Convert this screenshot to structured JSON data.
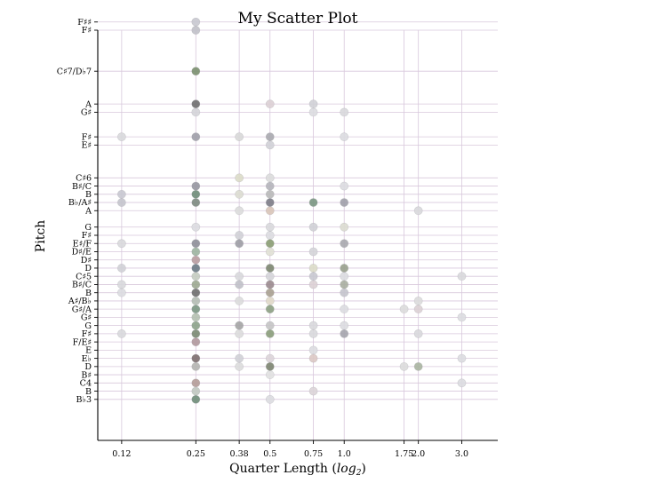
{
  "chart_data": {
    "type": "scatter",
    "title": "My Scatter Plot",
    "xlabel_main": "Quarter Length (",
    "xlabel_math": "log",
    "xlabel_sub": "2",
    "xlabel_close": ")",
    "ylabel": "Pitch",
    "x_scale": "log2",
    "xlim": [
      0.1,
      4.2
    ],
    "x_ticks": [
      {
        "value": 0.125,
        "label": "0.12"
      },
      {
        "value": 0.25,
        "label": "0.25"
      },
      {
        "value": 0.375,
        "label": "0.38"
      },
      {
        "value": 0.5,
        "label": "0.5"
      },
      {
        "value": 0.75,
        "label": "0.75"
      },
      {
        "value": 1.0,
        "label": "1.0"
      },
      {
        "value": 1.75,
        "label": "1.75"
      },
      {
        "value": 2.0,
        "label": "2.0"
      },
      {
        "value": 3.0,
        "label": "3.0"
      }
    ],
    "ylim": [
      44,
      94
    ],
    "y_ticks": [
      {
        "value": 49,
        "label": "B♭3"
      },
      {
        "value": 50,
        "label": "B"
      },
      {
        "value": 51,
        "label": "C4"
      },
      {
        "value": 52,
        "label": "B♯"
      },
      {
        "value": 53,
        "label": "D"
      },
      {
        "value": 54,
        "label": "E♭"
      },
      {
        "value": 55,
        "label": "E"
      },
      {
        "value": 56,
        "label": "F/E♯"
      },
      {
        "value": 57,
        "label": "F♯"
      },
      {
        "value": 58,
        "label": "G"
      },
      {
        "value": 59,
        "label": "G♯"
      },
      {
        "value": 60,
        "label": "G♯/A"
      },
      {
        "value": 61,
        "label": "A♯/B♭"
      },
      {
        "value": 62,
        "label": "B"
      },
      {
        "value": 63,
        "label": "B♯/C"
      },
      {
        "value": 64,
        "label": "C♯5"
      },
      {
        "value": 65,
        "label": "D"
      },
      {
        "value": 66,
        "label": "D♯"
      },
      {
        "value": 67,
        "label": "D♯/E"
      },
      {
        "value": 68,
        "label": "E♯/F"
      },
      {
        "value": 69,
        "label": "F♯"
      },
      {
        "value": 70,
        "label": "G"
      },
      {
        "value": 72,
        "label": "A"
      },
      {
        "value": 73,
        "label": "B♭/A♯"
      },
      {
        "value": 74,
        "label": "B"
      },
      {
        "value": 75,
        "label": "B♯/C"
      },
      {
        "value": 76,
        "label": "C♯6"
      },
      {
        "value": 80,
        "label": "E♯"
      },
      {
        "value": 81,
        "label": "F♯"
      },
      {
        "value": 84,
        "label": "G♯"
      },
      {
        "value": 85,
        "label": "A"
      },
      {
        "value": 89,
        "label": "C♯7/D♭7"
      },
      {
        "value": 94,
        "label": "F♯"
      },
      {
        "value": 95,
        "label": "F♯♯"
      }
    ],
    "grid": true,
    "points": [
      {
        "x": 0.25,
        "y": 95,
        "color": "#c8c8cf"
      },
      {
        "x": 0.25,
        "y": 94,
        "color": "#c0c0c8"
      },
      {
        "x": 0.25,
        "y": 89,
        "color": "#7a8f6e"
      },
      {
        "x": 0.25,
        "y": 85,
        "color": "#6e6e6e"
      },
      {
        "x": 0.25,
        "y": 84,
        "color": "#d4d4d8"
      },
      {
        "x": 0.5,
        "y": 85,
        "color": "#dccfd4"
      },
      {
        "x": 0.75,
        "y": 85,
        "color": "#d0d0d6"
      },
      {
        "x": 0.75,
        "y": 84,
        "color": "#dcdce0"
      },
      {
        "x": 1.0,
        "y": 84,
        "color": "#d8d8dc"
      },
      {
        "x": 0.125,
        "y": 81,
        "color": "#d8d8dc"
      },
      {
        "x": 0.25,
        "y": 81,
        "color": "#9e9ea8"
      },
      {
        "x": 0.375,
        "y": 81,
        "color": "#d8d8d8"
      },
      {
        "x": 0.5,
        "y": 81,
        "color": "#a8a8ae"
      },
      {
        "x": 0.5,
        "y": 80,
        "color": "#d0d0d6"
      },
      {
        "x": 1.0,
        "y": 81,
        "color": "#dcdce0"
      },
      {
        "x": 0.375,
        "y": 76,
        "color": "#dcdcc8"
      },
      {
        "x": 0.5,
        "y": 76,
        "color": "#dcdcdc"
      },
      {
        "x": 0.25,
        "y": 75,
        "color": "#9696a0"
      },
      {
        "x": 0.5,
        "y": 75,
        "color": "#b4b4ba"
      },
      {
        "x": 1.0,
        "y": 75,
        "color": "#dcdce0"
      },
      {
        "x": 0.125,
        "y": 74,
        "color": "#c8c8d0"
      },
      {
        "x": 0.25,
        "y": 74,
        "color": "#6e8c78"
      },
      {
        "x": 0.375,
        "y": 74,
        "color": "#dcdcd0"
      },
      {
        "x": 0.5,
        "y": 74,
        "color": "#b8b8b8"
      },
      {
        "x": 0.125,
        "y": 73,
        "color": "#c4c4cc"
      },
      {
        "x": 0.25,
        "y": 73,
        "color": "#7c8a80"
      },
      {
        "x": 0.5,
        "y": 73,
        "color": "#7c7c86"
      },
      {
        "x": 0.75,
        "y": 73,
        "color": "#7a9682"
      },
      {
        "x": 1.0,
        "y": 73,
        "color": "#a0a0a8"
      },
      {
        "x": 0.375,
        "y": 72,
        "color": "#dcdcdc"
      },
      {
        "x": 0.5,
        "y": 72,
        "color": "#d8c4b8"
      },
      {
        "x": 2.0,
        "y": 72,
        "color": "#d8d8dc"
      },
      {
        "x": 0.25,
        "y": 70,
        "color": "#dcdce0"
      },
      {
        "x": 0.5,
        "y": 70,
        "color": "#d8d8dc"
      },
      {
        "x": 0.75,
        "y": 70,
        "color": "#d0d0d6"
      },
      {
        "x": 1.0,
        "y": 70,
        "color": "#dcdcd0"
      },
      {
        "x": 0.375,
        "y": 69,
        "color": "#d0d0d6"
      },
      {
        "x": 0.5,
        "y": 69,
        "color": "#dcdce0"
      },
      {
        "x": 0.125,
        "y": 68,
        "color": "#d8d8dc"
      },
      {
        "x": 0.25,
        "y": 68,
        "color": "#8e8e98"
      },
      {
        "x": 0.375,
        "y": 68,
        "color": "#9c9ca4"
      },
      {
        "x": 0.5,
        "y": 68,
        "color": "#8a9c72"
      },
      {
        "x": 1.0,
        "y": 68,
        "color": "#a8a8ae"
      },
      {
        "x": 0.25,
        "y": 67,
        "color": "#9cb4a0"
      },
      {
        "x": 0.5,
        "y": 67,
        "color": "#e0e0d4"
      },
      {
        "x": 0.75,
        "y": 67,
        "color": "#d4d4d8"
      },
      {
        "x": 0.25,
        "y": 66,
        "color": "#b89ca0"
      },
      {
        "x": 0.125,
        "y": 65,
        "color": "#d0d0d6"
      },
      {
        "x": 0.25,
        "y": 65,
        "color": "#6a7a84"
      },
      {
        "x": 0.5,
        "y": 65,
        "color": "#7c8670"
      },
      {
        "x": 0.75,
        "y": 65,
        "color": "#dcdcc8"
      },
      {
        "x": 1.0,
        "y": 65,
        "color": "#98a08c"
      },
      {
        "x": 0.25,
        "y": 64,
        "color": "#c4ccc0"
      },
      {
        "x": 0.375,
        "y": 64,
        "color": "#d8d8dc"
      },
      {
        "x": 0.5,
        "y": 64,
        "color": "#d4d4d8"
      },
      {
        "x": 0.75,
        "y": 64,
        "color": "#c8c8d0"
      },
      {
        "x": 1.0,
        "y": 64,
        "color": "#dcdce0"
      },
      {
        "x": 3.0,
        "y": 64,
        "color": "#d8d8dc"
      },
      {
        "x": 0.125,
        "y": 63,
        "color": "#d8d8dc"
      },
      {
        "x": 0.25,
        "y": 63,
        "color": "#9ca890"
      },
      {
        "x": 0.375,
        "y": 63,
        "color": "#c0c0c8"
      },
      {
        "x": 0.5,
        "y": 63,
        "color": "#9a8a8e"
      },
      {
        "x": 0.75,
        "y": 63,
        "color": "#dcd0d4"
      },
      {
        "x": 1.0,
        "y": 63,
        "color": "#a8aea0"
      },
      {
        "x": 0.125,
        "y": 62,
        "color": "#dcdce0"
      },
      {
        "x": 0.25,
        "y": 62,
        "color": "#6e6e6e"
      },
      {
        "x": 0.5,
        "y": 62,
        "color": "#a8a090"
      },
      {
        "x": 1.0,
        "y": 62,
        "color": "#c4c4cc"
      },
      {
        "x": 0.25,
        "y": 61,
        "color": "#b4bcb4"
      },
      {
        "x": 0.375,
        "y": 61,
        "color": "#dcdcdc"
      },
      {
        "x": 0.5,
        "y": 61,
        "color": "#e0d8c8"
      },
      {
        "x": 2.0,
        "y": 61,
        "color": "#dcdcdc"
      },
      {
        "x": 0.25,
        "y": 60,
        "color": "#7a9682"
      },
      {
        "x": 0.5,
        "y": 60,
        "color": "#8ca082"
      },
      {
        "x": 1.0,
        "y": 60,
        "color": "#dcdce0"
      },
      {
        "x": 1.75,
        "y": 60,
        "color": "#dcdcdc"
      },
      {
        "x": 2.0,
        "y": 60,
        "color": "#dcd0d4"
      },
      {
        "x": 0.25,
        "y": 59,
        "color": "#b4c0b0"
      },
      {
        "x": 3.0,
        "y": 59,
        "color": "#dcdce0"
      },
      {
        "x": 0.25,
        "y": 58,
        "color": "#8ca28a"
      },
      {
        "x": 0.375,
        "y": 58,
        "color": "#a4a4a4"
      },
      {
        "x": 0.5,
        "y": 58,
        "color": "#c4c4c4"
      },
      {
        "x": 0.75,
        "y": 58,
        "color": "#d8d8dc"
      },
      {
        "x": 1.0,
        "y": 58,
        "color": "#dcdce0"
      },
      {
        "x": 0.125,
        "y": 57,
        "color": "#d8d8dc"
      },
      {
        "x": 0.25,
        "y": 57,
        "color": "#7a8a72"
      },
      {
        "x": 0.375,
        "y": 57,
        "color": "#dcdcdc"
      },
      {
        "x": 0.5,
        "y": 57,
        "color": "#8a9c7a"
      },
      {
        "x": 0.75,
        "y": 57,
        "color": "#d8d8dc"
      },
      {
        "x": 1.0,
        "y": 57,
        "color": "#a4a4ac"
      },
      {
        "x": 2.0,
        "y": 57,
        "color": "#d8d8dc"
      },
      {
        "x": 0.25,
        "y": 56,
        "color": "#b0989c"
      },
      {
        "x": 0.75,
        "y": 55,
        "color": "#dcdce0"
      },
      {
        "x": 0.25,
        "y": 54,
        "color": "#7c6e6e"
      },
      {
        "x": 0.375,
        "y": 54,
        "color": "#d0d0d6"
      },
      {
        "x": 0.5,
        "y": 54,
        "color": "#dcd4d8"
      },
      {
        "x": 0.75,
        "y": 54,
        "color": "#dcc8c4"
      },
      {
        "x": 3.0,
        "y": 54,
        "color": "#dcdce0"
      },
      {
        "x": 0.25,
        "y": 53,
        "color": "#b4b4b0"
      },
      {
        "x": 0.375,
        "y": 53,
        "color": "#dcdcdc"
      },
      {
        "x": 0.5,
        "y": 53,
        "color": "#7c8470"
      },
      {
        "x": 1.75,
        "y": 53,
        "color": "#dcdcdc"
      },
      {
        "x": 2.0,
        "y": 53,
        "color": "#a8b4a0"
      },
      {
        "x": 0.5,
        "y": 52,
        "color": "#e0e0e0"
      },
      {
        "x": 0.25,
        "y": 51,
        "color": "#b49c98"
      },
      {
        "x": 3.0,
        "y": 51,
        "color": "#dcdce0"
      },
      {
        "x": 0.25,
        "y": 50,
        "color": "#c0c8c0"
      },
      {
        "x": 0.75,
        "y": 50,
        "color": "#dcd4d8"
      },
      {
        "x": 0.25,
        "y": 49,
        "color": "#6e8c78"
      },
      {
        "x": 0.5,
        "y": 49,
        "color": "#dcdce0"
      }
    ]
  }
}
